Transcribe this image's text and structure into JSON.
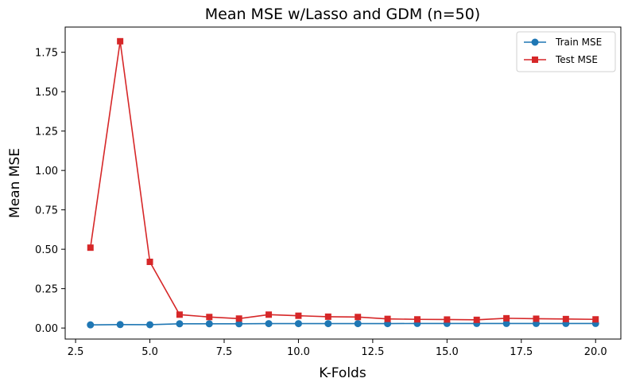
{
  "chart_data": {
    "type": "line",
    "title": "Mean MSE w/Lasso and GDM (n=50)",
    "xlabel": "K-Folds",
    "ylabel": "Mean MSE",
    "xlim": [
      2.15,
      20.85
    ],
    "ylim": [
      -0.07,
      1.91
    ],
    "xticks": [
      2.5,
      5.0,
      7.5,
      10.0,
      12.5,
      15.0,
      17.5,
      20.0
    ],
    "xtick_labels": [
      "2.5",
      "5.0",
      "7.5",
      "10.0",
      "12.5",
      "15.0",
      "17.5",
      "20.0"
    ],
    "yticks": [
      0.0,
      0.25,
      0.5,
      0.75,
      1.0,
      1.25,
      1.5,
      1.75
    ],
    "ytick_labels": [
      "0.00",
      "0.25",
      "0.50",
      "0.75",
      "1.00",
      "1.25",
      "1.50",
      "1.75"
    ],
    "legend_position": "top-right",
    "x": [
      3,
      4,
      5,
      6,
      7,
      8,
      9,
      10,
      11,
      12,
      13,
      14,
      15,
      16,
      17,
      18,
      19,
      20
    ],
    "series": [
      {
        "name": "Train MSE",
        "color": "#1f77b4",
        "marker": "circle",
        "values": [
          0.02,
          0.022,
          0.021,
          0.027,
          0.027,
          0.027,
          0.028,
          0.028,
          0.028,
          0.028,
          0.028,
          0.029,
          0.029,
          0.029,
          0.029,
          0.029,
          0.029,
          0.029
        ]
      },
      {
        "name": "Test MSE",
        "color": "#d62728",
        "marker": "square",
        "values": [
          0.51,
          1.82,
          0.42,
          0.085,
          0.07,
          0.06,
          0.085,
          0.078,
          0.072,
          0.07,
          0.058,
          0.055,
          0.054,
          0.052,
          0.062,
          0.059,
          0.057,
          0.055
        ]
      }
    ]
  }
}
